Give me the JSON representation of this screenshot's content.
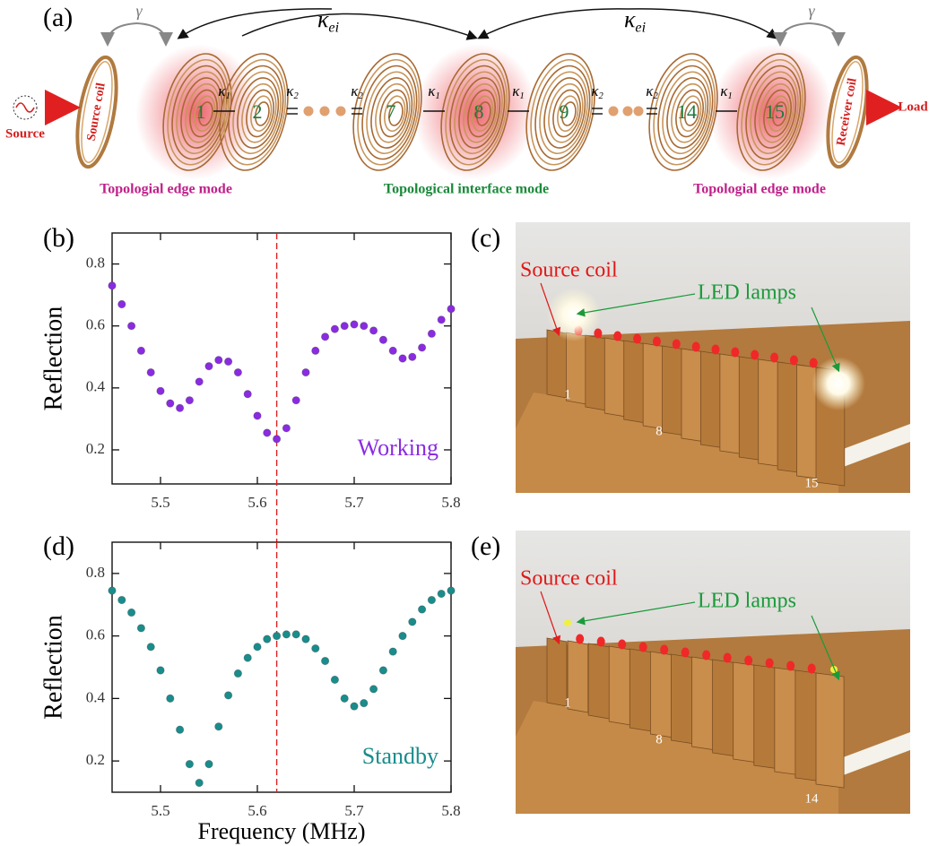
{
  "panel_labels": [
    "(a)",
    "(b)",
    "(c)",
    "(d)",
    "(e)"
  ],
  "diagram": {
    "source": "Source",
    "load": "Load",
    "source_coil": "Source coil",
    "receiver_coil": "Receiver coil",
    "gamma": [
      "γ",
      "γ"
    ],
    "kappa_ei": [
      {
        "symbol": "κ",
        "sub": "ei"
      },
      {
        "symbol": "κ",
        "sub": "ei"
      }
    ],
    "couplings": [
      {
        "symbol": "κ",
        "sub": "1"
      },
      {
        "symbol": "κ",
        "sub": "2"
      },
      {
        "symbol": "κ",
        "sub": "2"
      },
      {
        "symbol": "κ",
        "sub": "1"
      },
      {
        "symbol": "κ",
        "sub": "1"
      },
      {
        "symbol": "κ",
        "sub": "2"
      },
      {
        "symbol": "κ",
        "sub": "2"
      },
      {
        "symbol": "κ",
        "sub": "1"
      }
    ],
    "coils": [
      "1",
      "2",
      "7",
      "8",
      "9",
      "14",
      "15"
    ],
    "modes": [
      "Topologial edge mode",
      "Topological interface mode",
      "Topologial edge mode"
    ]
  },
  "chart_data": [
    {
      "type": "scatter",
      "ylabel": "Reflection",
      "annotation": "Working",
      "color": "#8a2be2",
      "x": [
        5.45,
        5.46,
        5.47,
        5.48,
        5.49,
        5.5,
        5.51,
        5.52,
        5.53,
        5.54,
        5.55,
        5.56,
        5.57,
        5.58,
        5.59,
        5.6,
        5.61,
        5.62,
        5.63,
        5.64,
        5.65,
        5.66,
        5.67,
        5.68,
        5.69,
        5.7,
        5.71,
        5.72,
        5.73,
        5.74,
        5.75,
        5.76,
        5.77,
        5.78,
        5.79,
        5.8
      ],
      "values": [
        0.73,
        0.67,
        0.6,
        0.52,
        0.45,
        0.39,
        0.35,
        0.335,
        0.36,
        0.42,
        0.47,
        0.49,
        0.485,
        0.45,
        0.38,
        0.31,
        0.255,
        0.235,
        0.27,
        0.36,
        0.45,
        0.52,
        0.565,
        0.59,
        0.6,
        0.605,
        0.6,
        0.585,
        0.555,
        0.52,
        0.495,
        0.5,
        0.53,
        0.575,
        0.62,
        0.655
      ],
      "xlim": [
        5.45,
        5.8
      ],
      "ylim": [
        0.09,
        0.9
      ],
      "xticks": [
        5.5,
        5.6,
        5.7,
        5.8
      ],
      "yticks": [
        0.2,
        0.4,
        0.6,
        0.8
      ],
      "vline": 5.62
    },
    {
      "type": "scatter",
      "ylabel": "Reflection",
      "xlabel": "Frequency (MHz)",
      "annotation": "Standby",
      "color": "#1a8c8c",
      "x": [
        5.45,
        5.46,
        5.47,
        5.48,
        5.49,
        5.5,
        5.51,
        5.52,
        5.53,
        5.54,
        5.55,
        5.56,
        5.57,
        5.58,
        5.59,
        5.6,
        5.61,
        5.62,
        5.63,
        5.64,
        5.65,
        5.66,
        5.67,
        5.68,
        5.69,
        5.7,
        5.71,
        5.72,
        5.73,
        5.74,
        5.75,
        5.76,
        5.77,
        5.78,
        5.79,
        5.8
      ],
      "values": [
        0.745,
        0.715,
        0.675,
        0.625,
        0.565,
        0.49,
        0.4,
        0.3,
        0.19,
        0.13,
        0.19,
        0.31,
        0.41,
        0.48,
        0.53,
        0.565,
        0.59,
        0.6,
        0.605,
        0.605,
        0.59,
        0.56,
        0.52,
        0.46,
        0.4,
        0.375,
        0.385,
        0.43,
        0.49,
        0.55,
        0.6,
        0.645,
        0.685,
        0.715,
        0.735,
        0.745
      ],
      "xlim": [
        5.45,
        5.8
      ],
      "ylim": [
        0.1,
        0.9
      ],
      "xticks": [
        5.5,
        5.6,
        5.7,
        5.8
      ],
      "yticks": [
        0.2,
        0.4,
        0.6,
        0.8
      ],
      "vline": 5.62
    }
  ],
  "photos": [
    {
      "source_coil": "Source coil",
      "led": "LED lamps",
      "numbers": [
        "1",
        "8",
        "15"
      ]
    },
    {
      "source_coil": "Source coil",
      "led": "LED lamps",
      "numbers": [
        "1",
        "8",
        "14"
      ]
    }
  ]
}
